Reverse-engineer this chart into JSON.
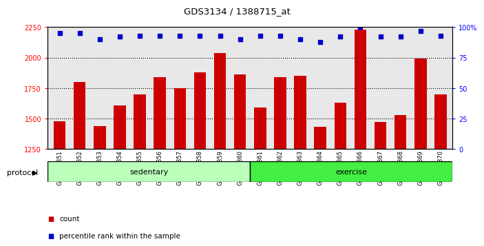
{
  "title": "GDS3134 / 1388715_at",
  "samples": [
    "GSM184851",
    "GSM184852",
    "GSM184853",
    "GSM184854",
    "GSM184855",
    "GSM184856",
    "GSM184857",
    "GSM184858",
    "GSM184859",
    "GSM184860",
    "GSM184861",
    "GSM184862",
    "GSM184863",
    "GSM184864",
    "GSM184865",
    "GSM184866",
    "GSM184867",
    "GSM184868",
    "GSM184869",
    "GSM184870"
  ],
  "bar_values": [
    1480,
    1800,
    1440,
    1610,
    1700,
    1840,
    1750,
    1880,
    2040,
    1860,
    1590,
    1840,
    1850,
    1430,
    1630,
    2230,
    1470,
    1530,
    1990,
    1700
  ],
  "percentile_values": [
    95,
    95,
    90,
    92,
    93,
    93,
    93,
    93,
    93,
    90,
    93,
    93,
    90,
    88,
    92,
    100,
    92,
    92,
    97,
    93
  ],
  "bar_color": "#cc0000",
  "dot_color": "#0000cc",
  "ylim_left": [
    1250,
    2250
  ],
  "ylim_right": [
    0,
    100
  ],
  "yticks_left": [
    1250,
    1500,
    1750,
    2000,
    2250
  ],
  "yticks_right": [
    0,
    25,
    50,
    75,
    100
  ],
  "ytick_labels_right": [
    "0",
    "25",
    "50",
    "75",
    "100%"
  ],
  "grid_values": [
    1500,
    1750,
    2000
  ],
  "sedentary_count": 10,
  "exercise_count": 10,
  "sedentary_color": "#bbffbb",
  "exercise_color": "#44ee44",
  "protocol_label": "protocol",
  "sedentary_label": "sedentary",
  "exercise_label": "exercise",
  "legend_count_label": "count",
  "legend_percentile_label": "percentile rank within the sample",
  "plot_bg_color": "#e8e8e8",
  "fig_bg_color": "#ffffff"
}
